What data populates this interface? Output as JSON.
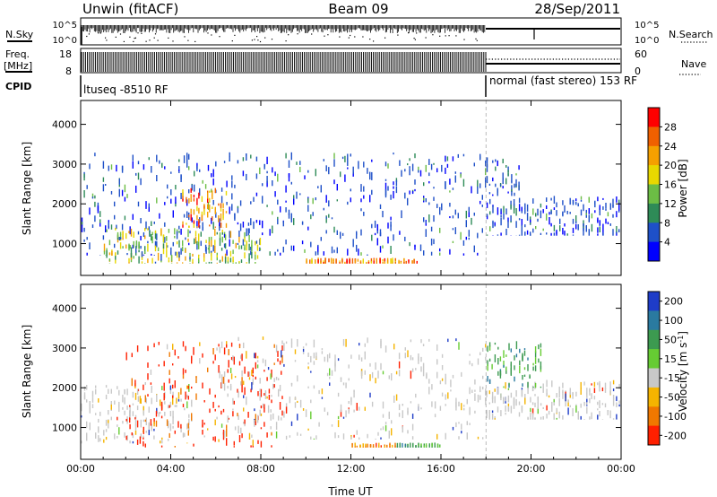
{
  "header": {
    "station": "Unwin (fitACF)",
    "beam": "Beam 09",
    "date": "28/Sep/2011"
  },
  "strip_labels": {
    "nsky": "N.Sky",
    "nsky_ticks": [
      "10^5",
      "10^0"
    ],
    "nsearch": "N.Search",
    "nsearch_ticks": [
      "10^5",
      "10^0"
    ],
    "freq": "Freq.",
    "freq_unit": "[MHz]",
    "freq_ticks": [
      "18",
      "8"
    ],
    "nave": "Nave",
    "nave_ticks": [
      "60",
      "0"
    ],
    "cpid": "CPID",
    "cpid_segments": [
      {
        "label": "ltuseq -8510 RF",
        "start_hour": 0,
        "end_hour": 18
      },
      {
        "label": "normal (fast stereo) 153 RF",
        "start_hour": 18,
        "end_hour": 24
      }
    ]
  },
  "axes": {
    "ylabel": "Slant Range [km]",
    "yticks": [
      "1000",
      "2000",
      "3000",
      "4000"
    ],
    "ytick_values": [
      1000,
      2000,
      3000,
      4000
    ],
    "ylim": [
      200,
      4600
    ],
    "xlabel": "Time UT",
    "xticks": [
      "00:00",
      "04:00",
      "08:00",
      "12:00",
      "16:00",
      "20:00",
      "00:00"
    ],
    "xtick_values": [
      0,
      4,
      8,
      12,
      16,
      20,
      24
    ],
    "xlim": [
      0,
      24
    ]
  },
  "chart_data": [
    {
      "type": "heatmap",
      "name": "power",
      "colorbar_label": "Power [dB]",
      "colorbar_ticks": [
        "4",
        "8",
        "12",
        "16",
        "20",
        "24",
        "28"
      ],
      "colorbar_range": [
        0,
        30
      ],
      "colorscale": [
        "#0000ff",
        "#1e50c8",
        "#2e8b57",
        "#6cbd45",
        "#e8d800",
        "#f5a000",
        "#f06000",
        "#ff0000"
      ],
      "scatter_regions": [
        {
          "t0": 0.0,
          "t1": 18.0,
          "r0": 700,
          "r1": 3300,
          "dominant": "low"
        },
        {
          "t0": 1.0,
          "t1": 8.0,
          "r0": 500,
          "r1": 1400,
          "dominant": "mid"
        },
        {
          "t0": 4.5,
          "t1": 6.5,
          "r0": 1400,
          "r1": 2400,
          "dominant": "high"
        },
        {
          "t0": 10.0,
          "t1": 15.0,
          "r0": 500,
          "r1": 650,
          "dominant": "high"
        },
        {
          "t0": 18.0,
          "t1": 24.0,
          "r0": 1200,
          "r1": 2200,
          "dominant": "low"
        },
        {
          "t0": 18.0,
          "t1": 19.5,
          "r0": 2200,
          "r1": 3200,
          "dominant": "low"
        }
      ]
    },
    {
      "type": "heatmap",
      "name": "velocity",
      "colorbar_label": "Velocity [m s^-1]",
      "colorbar_ticks": [
        "200",
        "100",
        "50",
        "15",
        "-15",
        "-50",
        "-100",
        "-200"
      ],
      "colorbar_range": [
        -250,
        250
      ],
      "colorscale": [
        "#1e3cc8",
        "#2a7aa0",
        "#3c9a50",
        "#66cc33",
        "#c8c8c8",
        "#f5b400",
        "#f07800",
        "#ff2000"
      ],
      "scatter_regions": [
        {
          "t0": 0.0,
          "t1": 5.0,
          "r0": 600,
          "r1": 2100,
          "dominant": "gray"
        },
        {
          "t0": 2.0,
          "t1": 9.0,
          "r0": 500,
          "r1": 3200,
          "dominant": "red"
        },
        {
          "t0": 6.0,
          "t1": 18.0,
          "r0": 700,
          "r1": 3300,
          "dominant": "gray"
        },
        {
          "t0": 12.0,
          "t1": 14.0,
          "r0": 500,
          "r1": 620,
          "dominant": "orange"
        },
        {
          "t0": 14.0,
          "t1": 16.0,
          "r0": 500,
          "r1": 620,
          "dominant": "green"
        },
        {
          "t0": 18.0,
          "t1": 24.0,
          "r0": 1200,
          "r1": 2200,
          "dominant": "gray"
        },
        {
          "t0": 18.0,
          "t1": 20.5,
          "r0": 2000,
          "r1": 3200,
          "dominant": "green"
        }
      ]
    }
  ]
}
